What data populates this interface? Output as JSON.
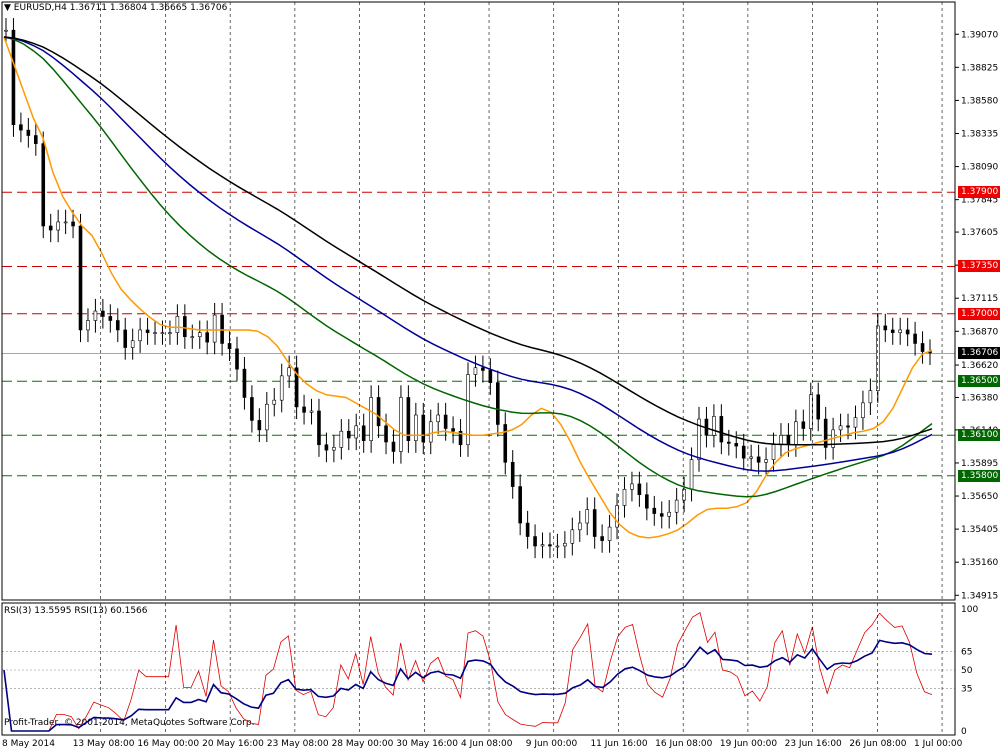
{
  "header": {
    "symbol": "EURUSD,H4",
    "open": "1.36711",
    "high": "1.36804",
    "low": "1.36665",
    "close": "1.36706"
  },
  "rsi_header": {
    "rsi3": "RSI(3) 13.5595",
    "rsi13": "RSI(13) 60.1566"
  },
  "copyright": "Profit-Trader, © 2001-2014, MetaQuotes Software Corp.",
  "colors": {
    "resistance": "#cc0000",
    "support": "#007700",
    "ema_fast": "#ff9900",
    "ema_mid": "#006600",
    "ema_slow": "#000099",
    "ema_long": "#000000",
    "rsi_fast": "#dd0000",
    "rsi_slow": "#000080",
    "current_price_bg": "#000000",
    "resistance_label_bg": "#ee0000",
    "support_label_bg": "#006600"
  },
  "chart_data": {
    "type": "line",
    "title": "EURUSD,H4",
    "price_axis_ticks": [
      "1.39070",
      "1.38825",
      "1.38580",
      "1.38335",
      "1.38090",
      "1.37845",
      "1.37605",
      "1.37360",
      "1.37115",
      "1.36870",
      "1.36620",
      "1.36380",
      "1.36140",
      "1.35895",
      "1.35650",
      "1.35405",
      "1.35160",
      "1.34915"
    ],
    "time_axis_ticks": [
      "8 May 2014",
      "13 May 08:00",
      "16 May 00:00",
      "20 May 16:00",
      "23 May 08:00",
      "28 May 00:00",
      "30 May 16:00",
      "4 Jun 08:00",
      "9 Jun 00:00",
      "11 Jun 16:00",
      "16 Jun 08:00",
      "19 Jun 00:00",
      "23 Jun 16:00",
      "26 Jun 08:00",
      "1 Jul 00:00"
    ],
    "ylim": [
      1.3488,
      1.3922
    ],
    "current_price": "1.36706",
    "levels": [
      {
        "label": "1.37900",
        "kind": "resistance",
        "value": 1.379
      },
      {
        "label": "1.37350",
        "kind": "resistance",
        "value": 1.3735
      },
      {
        "label": "1.37000",
        "kind": "resistance",
        "value": 1.37
      },
      {
        "label": "1.36500",
        "kind": "support",
        "value": 1.365
      },
      {
        "label": "1.36100",
        "kind": "support",
        "value": 1.361
      },
      {
        "label": "1.35800",
        "kind": "support",
        "value": 1.358
      }
    ],
    "price_close": [
      1.391,
      1.384,
      1.3836,
      1.3832,
      1.3826,
      1.3765,
      1.3762,
      1.3768,
      1.3768,
      1.3765,
      1.3688,
      1.3695,
      1.3702,
      1.3698,
      1.3695,
      1.3688,
      1.3675,
      1.368,
      1.3688,
      1.3686,
      1.3686,
      1.3686,
      1.3686,
      1.3698,
      1.3683,
      1.3683,
      1.3686,
      1.3679,
      1.3699,
      1.3678,
      1.3674,
      1.3659,
      1.3638,
      1.3621,
      1.3614,
      1.3633,
      1.3636,
      1.3654,
      1.366,
      1.3631,
      1.3627,
      1.3628,
      1.3603,
      1.3599,
      1.3601,
      1.3613,
      1.3608,
      1.3617,
      1.3606,
      1.3638,
      1.3617,
      1.3605,
      1.3598,
      1.3638,
      1.3606,
      1.3625,
      1.3605,
      1.362,
      1.3625,
      1.3615,
      1.3613,
      1.3603,
      1.3655,
      1.366,
      1.3658,
      1.3649,
      1.3618,
      1.359,
      1.3572,
      1.3545,
      1.3535,
      1.3528,
      1.3529,
      1.3528,
      1.3528,
      1.353,
      1.354,
      1.3545,
      1.3555,
      1.3535,
      1.3532,
      1.3542,
      1.3558,
      1.357,
      1.3574,
      1.3566,
      1.3556,
      1.3552,
      1.355,
      1.3553,
      1.3562,
      1.357,
      1.3592,
      1.3622,
      1.361,
      1.3624,
      1.3605,
      1.3604,
      1.3602,
      1.3593,
      1.3594,
      1.359,
      1.3592,
      1.3603,
      1.361,
      1.3603,
      1.362,
      1.3615,
      1.364,
      1.3622,
      1.3601,
      1.3614,
      1.3617,
      1.3616,
      1.3623,
      1.3634,
      1.3643,
      1.3691,
      1.3688,
      1.3686,
      1.3688,
      1.3685,
      1.3678,
      1.3672,
      1.3671
    ],
    "ema_fast": [
      1.3905,
      1.3885,
      1.3865,
      1.3845,
      1.383,
      1.3805,
      1.3787,
      1.3775,
      1.3765,
      1.3758,
      1.3745,
      1.373,
      1.3718,
      1.371,
      1.3703,
      1.3697,
      1.3692,
      1.369,
      1.369,
      1.3689,
      1.3688,
      1.3688,
      1.3688,
      1.3688,
      1.3688,
      1.3688,
      1.3687,
      1.3683,
      1.3676,
      1.3665,
      1.3655,
      1.3648,
      1.3643,
      1.364,
      1.3639,
      1.3638,
      1.3634,
      1.363,
      1.3626,
      1.362,
      1.3614,
      1.361,
      1.361,
      1.361,
      1.3612,
      1.3613,
      1.3612,
      1.3611,
      1.361,
      1.361,
      1.3611,
      1.3612,
      1.3614,
      1.3618,
      1.3625,
      1.363,
      1.3627,
      1.3618,
      1.3605,
      1.359,
      1.3577,
      1.3565,
      1.3553,
      1.3544,
      1.3538,
      1.3535,
      1.3534,
      1.3535,
      1.3537,
      1.354,
      1.3545,
      1.3551,
      1.3555,
      1.3556,
      1.3556,
      1.3557,
      1.356,
      1.3568,
      1.358,
      1.359,
      1.3597,
      1.36,
      1.3602,
      1.3604,
      1.3606,
      1.3608,
      1.361,
      1.3612,
      1.3613,
      1.3615,
      1.362,
      1.363,
      1.3645,
      1.366,
      1.367,
      1.3673
    ],
    "rsi_axis_ticks": [
      "100",
      "65",
      "50",
      "35",
      "0"
    ],
    "rsi_ylim": [
      0,
      100
    ]
  }
}
